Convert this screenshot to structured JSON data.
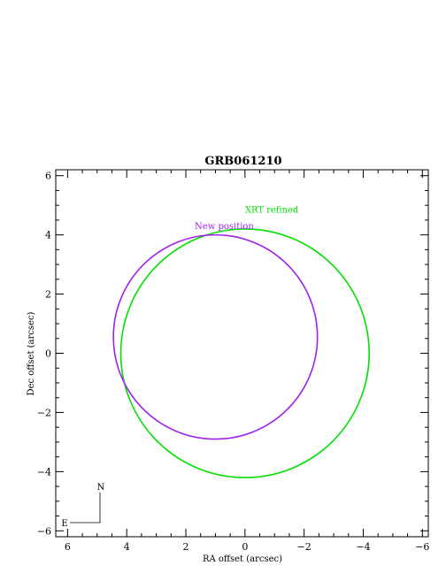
{
  "chart_data": {
    "type": "scatter",
    "title": "GRB061210",
    "xlabel": "RA offset (arcsec)",
    "ylabel": "Dec offset (arcsec)",
    "xlim": [
      6.4,
      -6.2
    ],
    "ylim": [
      -6.2,
      6.2
    ],
    "x_ticks": [
      6,
      4,
      2,
      0,
      -2,
      -4,
      -6
    ],
    "y_ticks": [
      -6,
      -4,
      -2,
      0,
      2,
      4,
      6
    ],
    "x_tick_labels": [
      "6",
      "4",
      "2",
      "0",
      "−2",
      "−4",
      "−6"
    ],
    "y_tick_labels": [
      "−6",
      "−4",
      "−2",
      "0",
      "2",
      "4",
      "6"
    ],
    "series": [
      {
        "name": "XRT refined",
        "shape": "circle",
        "center": [
          0,
          0
        ],
        "radius": 4.2,
        "color": "#00e000",
        "label_at": [
          0,
          4.75
        ]
      },
      {
        "name": "New position",
        "shape": "circle",
        "center": [
          1.0,
          0.55
        ],
        "radius": 3.45,
        "color": "#a020f0",
        "label_at": [
          1.7,
          4.2
        ]
      }
    ],
    "compass": {
      "north": "N",
      "east": "E"
    },
    "grid": false
  }
}
